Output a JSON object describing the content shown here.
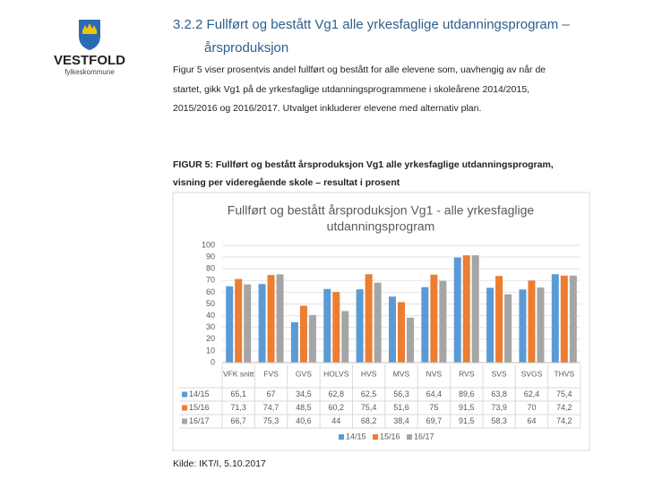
{
  "logo": {
    "name": "VESTFOLD",
    "subtitle": "fylkeskommune"
  },
  "heading": [
    "3.2.2 Fullført og bestått Vg1 alle yrkesfaglige utdanningsprogram –",
    "årsproduksjon"
  ],
  "paragraph": [
    "Figur 5 viser prosentvis andel fullført og bestått for alle elevene som, uavhengig av når de",
    "startet, gikk Vg1 på de yrkesfaglige utdanningsprogrammene i skoleårene 2014/2015,",
    "2015/2016 og 2016/2017. Utvalget inkluderer elevene med alternativ plan."
  ],
  "caption": [
    "FIGUR 5: Fullført og bestått årsproduksjon Vg1 alle yrkesfaglige utdanningsprogram,",
    "visning per videregående skole – resultat i prosent"
  ],
  "source": "Kilde: IKT/I, 5.10.2017",
  "chart_data": {
    "type": "bar",
    "title": [
      "Fullført og bestått årsproduksjon Vg1 - alle yrkesfaglige",
      "utdanningsprogram"
    ],
    "categories": [
      "VFK snitt",
      "FVS",
      "GVS",
      "HOLVS",
      "HVS",
      "MVS",
      "NVS",
      "RVS",
      "SVS",
      "SVGS",
      "THVS"
    ],
    "series": [
      {
        "name": "14/15",
        "color": "#5b9bd5",
        "values": [
          65.1,
          67,
          34.5,
          62.8,
          62.5,
          56.3,
          64.4,
          89.6,
          63.8,
          62.4,
          75.4
        ],
        "value_labels": [
          "65,1",
          "67",
          "34,5",
          "62,8",
          "62,5",
          "56,3",
          "64,4",
          "89,6",
          "63,8",
          "62,4",
          "75,4"
        ]
      },
      {
        "name": "15/16",
        "color": "#ed7d31",
        "values": [
          71.3,
          74.7,
          48.5,
          60.2,
          75.4,
          51.6,
          75,
          91.5,
          73.9,
          70,
          74.2
        ],
        "value_labels": [
          "71,3",
          "74,7",
          "48,5",
          "60,2",
          "75,4",
          "51,6",
          "75",
          "91,5",
          "73,9",
          "70",
          "74,2"
        ]
      },
      {
        "name": "16/17",
        "color": "#a5a5a5",
        "values": [
          66.7,
          75.3,
          40.6,
          44,
          68.2,
          38.4,
          69.7,
          91.5,
          58.3,
          64,
          74.2
        ],
        "value_labels": [
          "66,7",
          "75,3",
          "40,6",
          "44",
          "68,2",
          "38,4",
          "69,7",
          "91,5",
          "58,3",
          "64",
          "74,2"
        ]
      }
    ],
    "ylim": [
      0,
      100
    ],
    "yticks": [
      0,
      10,
      20,
      30,
      40,
      50,
      60,
      70,
      80,
      90,
      100
    ],
    "grid": true
  }
}
